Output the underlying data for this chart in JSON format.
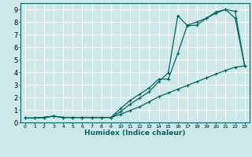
{
  "title": "",
  "xlabel": "Humidex (Indice chaleur)",
  "bg_color": "#cce8e8",
  "grid_color": "#ffffff",
  "line_color": "#006666",
  "xlim": [
    -0.5,
    23.5
  ],
  "ylim": [
    0,
    9.5
  ],
  "xticks": [
    0,
    1,
    2,
    3,
    4,
    5,
    6,
    7,
    8,
    9,
    10,
    11,
    12,
    13,
    14,
    15,
    16,
    17,
    18,
    19,
    20,
    21,
    22,
    23
  ],
  "yticks": [
    0,
    1,
    2,
    3,
    4,
    5,
    6,
    7,
    8,
    9
  ],
  "curve1_x": [
    0,
    1,
    2,
    3,
    4,
    5,
    6,
    7,
    8,
    9,
    10,
    11,
    12,
    13,
    14,
    15,
    16,
    17,
    18,
    19,
    20,
    21,
    22,
    23
  ],
  "curve1_y": [
    0.35,
    0.35,
    0.4,
    0.5,
    0.4,
    0.4,
    0.4,
    0.4,
    0.4,
    0.4,
    0.85,
    1.45,
    1.95,
    2.45,
    3.25,
    3.95,
    8.5,
    7.7,
    7.75,
    8.3,
    8.8,
    9.0,
    8.85,
    4.5
  ],
  "curve2_x": [
    0,
    1,
    2,
    3,
    4,
    5,
    6,
    7,
    8,
    9,
    10,
    11,
    12,
    13,
    14,
    15,
    16,
    17,
    18,
    19,
    20,
    21,
    22,
    23
  ],
  "curve2_y": [
    0.35,
    0.35,
    0.4,
    0.5,
    0.4,
    0.4,
    0.4,
    0.4,
    0.4,
    0.4,
    1.1,
    1.75,
    2.25,
    2.75,
    3.45,
    3.45,
    5.5,
    7.75,
    8.0,
    8.3,
    8.7,
    9.0,
    8.3,
    4.5
  ],
  "curve3_x": [
    0,
    1,
    2,
    3,
    4,
    5,
    6,
    7,
    8,
    9,
    10,
    11,
    12,
    13,
    14,
    15,
    16,
    17,
    18,
    19,
    20,
    21,
    22,
    23
  ],
  "curve3_y": [
    0.35,
    0.35,
    0.4,
    0.5,
    0.4,
    0.4,
    0.4,
    0.4,
    0.4,
    0.4,
    0.65,
    0.95,
    1.25,
    1.65,
    2.05,
    2.35,
    2.65,
    2.95,
    3.25,
    3.55,
    3.85,
    4.15,
    4.4,
    4.5
  ]
}
